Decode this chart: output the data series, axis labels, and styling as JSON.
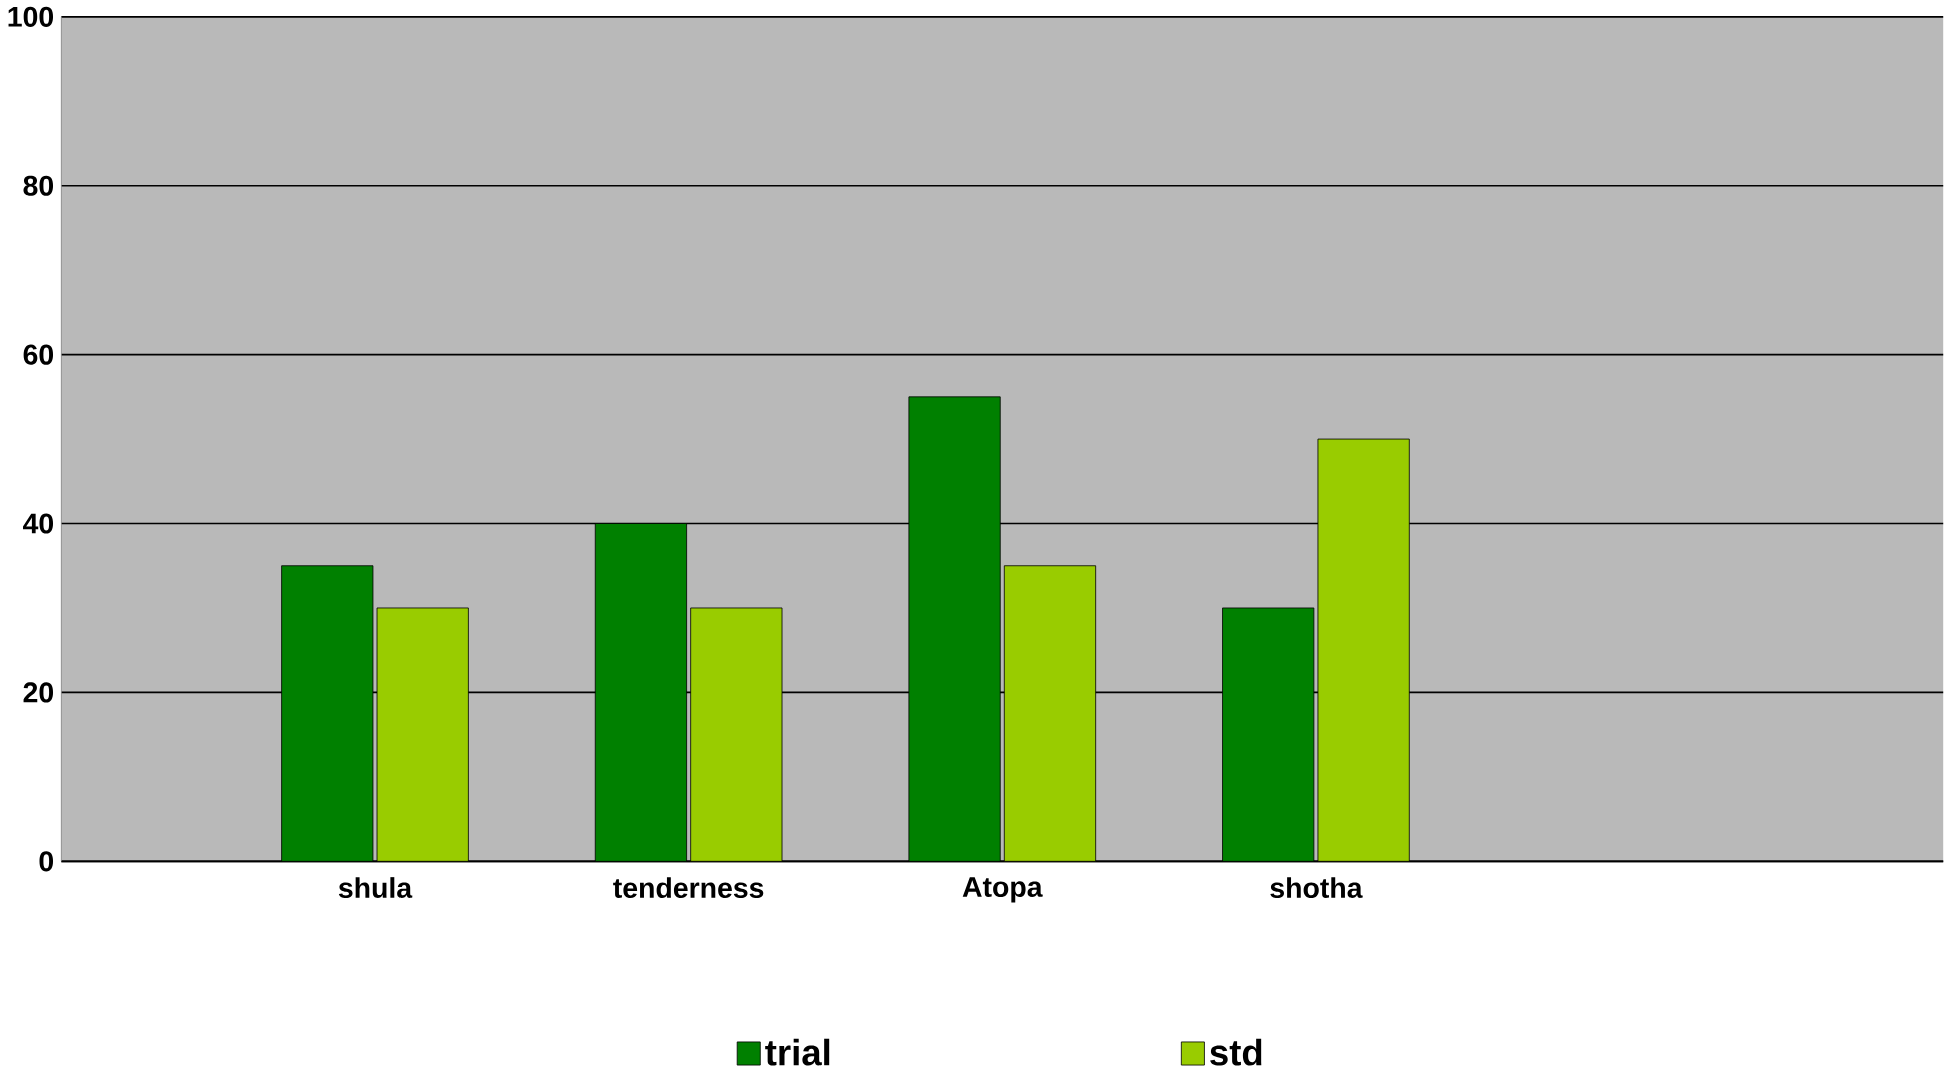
{
  "chart_data": {
    "type": "bar",
    "categories": [
      "shula",
      "tenderness",
      "Atopa",
      "shotha"
    ],
    "series": [
      {
        "name": "trial",
        "color": "#008000",
        "values": [
          35,
          40,
          55,
          30
        ]
      },
      {
        "name": "std",
        "color": "#99cc00",
        "values": [
          30,
          30,
          35,
          50
        ]
      }
    ],
    "ylim": [
      0,
      100
    ],
    "yticks": [
      0,
      20,
      40,
      60,
      80,
      100
    ],
    "grid": "y",
    "legend": "bottom"
  }
}
